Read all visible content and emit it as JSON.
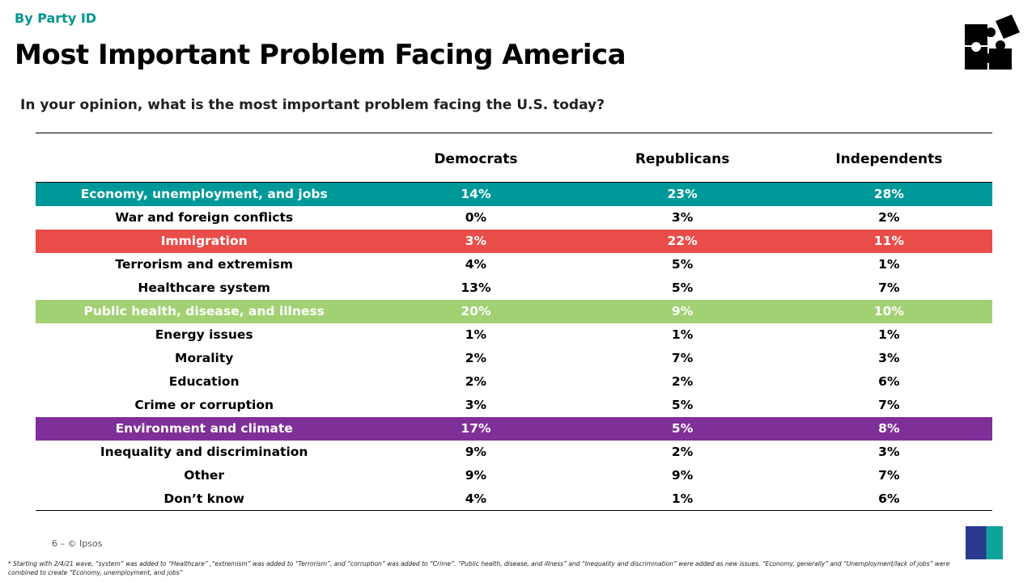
{
  "kicker": "By Party ID",
  "title": "Most Important Problem Facing America",
  "question": "In your opinion, what is the most important problem facing the U.S. today?",
  "columns": [
    "Democrats",
    "Republicans",
    "Independents"
  ],
  "rows": [
    {
      "label": "Economy, unemployment, and jobs",
      "values": [
        "14%",
        "23%",
        "28%"
      ],
      "highlight": "#00999a"
    },
    {
      "label": "War and foreign conflicts",
      "values": [
        "0%",
        "3%",
        "2%"
      ]
    },
    {
      "label": "Immigration",
      "values": [
        "3%",
        "22%",
        "11%"
      ],
      "highlight": "#e84d4a"
    },
    {
      "label": "Terrorism and extremism",
      "values": [
        "4%",
        "5%",
        "1%"
      ]
    },
    {
      "label": "Healthcare system",
      "values": [
        "13%",
        "5%",
        "7%"
      ]
    },
    {
      "label": "Public health, disease, and illness",
      "values": [
        "20%",
        "9%",
        "10%"
      ],
      "highlight": "#a2d174"
    },
    {
      "label": "Energy issues",
      "values": [
        "1%",
        "1%",
        "1%"
      ]
    },
    {
      "label": "Morality",
      "values": [
        "2%",
        "7%",
        "3%"
      ]
    },
    {
      "label": "Education",
      "values": [
        "2%",
        "2%",
        "6%"
      ]
    },
    {
      "label": "Crime or corruption",
      "values": [
        "3%",
        "5%",
        "7%"
      ]
    },
    {
      "label": "Environment and climate",
      "values": [
        "17%",
        "5%",
        "8%"
      ],
      "highlight": "#7f3098"
    },
    {
      "label": "Inequality and discrimination",
      "values": [
        "9%",
        "2%",
        "3%"
      ]
    },
    {
      "label": "Other",
      "values": [
        "9%",
        "9%",
        "7%"
      ]
    },
    {
      "label": "Don’t know",
      "values": [
        "4%",
        "1%",
        "6%"
      ]
    }
  ],
  "page": "6 –  © Ipsos",
  "footnote": "* Starting with 2/4/21 wave, “system” was added to “Healthcare” ,“extremism” was added to “Terrorism”, and “corruption” was added to “Crime”. “Public health, disease, and illness” and “Inequality and discrimination” were added as new issues. “Economy, generally” and “Unemployment/lack of jobs” were combined to create “Economy, unemployment, and jobs”",
  "logo": "Ipsos",
  "icons": {
    "top_right": "puzzle-pieces-icon"
  }
}
